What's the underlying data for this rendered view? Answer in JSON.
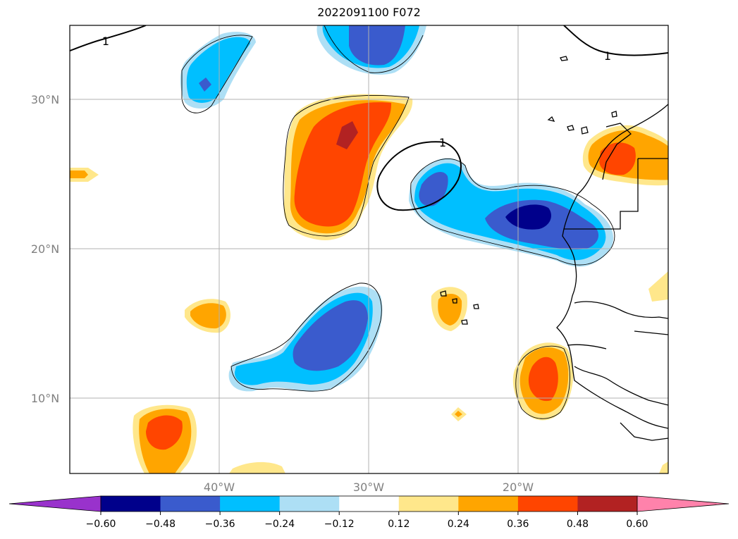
{
  "title": "2022091100 F072",
  "map": {
    "lon_ticks": [
      "40°W",
      "30°W",
      "20°W"
    ],
    "lat_ticks": [
      "30°N",
      "20°N",
      "10°N"
    ],
    "contour_label": "1",
    "colors": {
      "purple": "#9932CC",
      "navy": "#00008B",
      "blue": "#3A5BCD",
      "sky": "#00BFFF",
      "light_sky": "#ADDFF5",
      "white": "#FFFFFF",
      "light_yellow": "#FFE78B",
      "orange": "#FFA500",
      "red_orange": "#FF4500",
      "dark_red": "#B22222",
      "pink": "#FF82AB",
      "grid": "#B0B0B0"
    }
  },
  "colorbar": {
    "labels": [
      "−0.60",
      "−0.48",
      "−0.36",
      "−0.24",
      "−0.12",
      "0.12",
      "0.24",
      "0.36",
      "0.48",
      "0.60"
    ],
    "bins": [
      "#00008B",
      "#3A5BCD",
      "#00BFFF",
      "#ADDFF5",
      "#FFFFFF",
      "#FFE78B",
      "#FFA500",
      "#FF4500",
      "#B22222"
    ],
    "under_color": "#9932CC",
    "over_color": "#FF82AB"
  }
}
